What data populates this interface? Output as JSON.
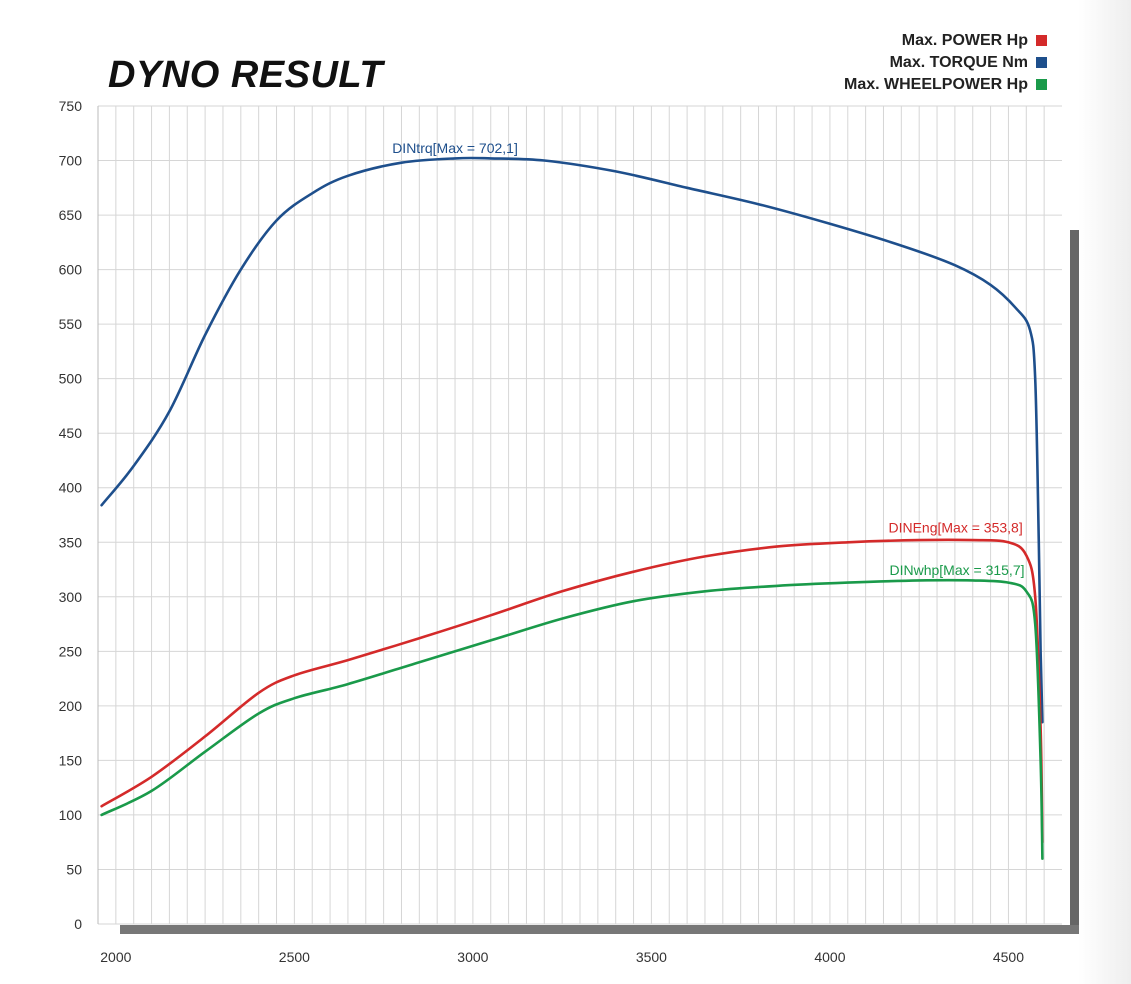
{
  "chart_data": {
    "type": "line",
    "title": "DYNO RESULT",
    "xlabel": "",
    "ylabel": "",
    "xlim": [
      1950,
      4650
    ],
    "ylim": [
      0,
      750
    ],
    "x_ticks": [
      2000,
      2500,
      3000,
      3500,
      4000,
      4500
    ],
    "y_ticks": [
      0,
      50,
      100,
      150,
      200,
      250,
      300,
      350,
      400,
      450,
      500,
      550,
      600,
      650,
      700,
      750
    ],
    "grid": true,
    "legend_position": "top-right",
    "legend": [
      {
        "label": "Max. POWER Hp",
        "color": "#d42a2a"
      },
      {
        "label": "Max. TORQUE Nm",
        "color": "#1e4f8c"
      },
      {
        "label": "Max. WHEELPOWER Hp",
        "color": "#1a9a4a"
      }
    ],
    "series": [
      {
        "key": "torque",
        "color": "#1e4f8c",
        "annotation": "DINtrq[Max = 702,1]",
        "x": [
          1960,
          2050,
          2150,
          2250,
          2350,
          2450,
          2550,
          2650,
          2800,
          2950,
          3050,
          3200,
          3400,
          3600,
          3800,
          4000,
          4200,
          4350,
          4450,
          4520,
          4560,
          4575,
          4585,
          4590,
          4595
        ],
        "y": [
          384,
          420,
          470,
          540,
          600,
          645,
          670,
          686,
          698,
          702,
          702,
          700,
          690,
          675,
          660,
          642,
          622,
          604,
          586,
          565,
          545,
          500,
          350,
          250,
          185
        ]
      },
      {
        "key": "power",
        "color": "#d42a2a",
        "annotation": "DINEng[Max = 353,8]",
        "x": [
          1960,
          2100,
          2250,
          2400,
          2500,
          2650,
          2850,
          3050,
          3250,
          3450,
          3650,
          3850,
          4050,
          4250,
          4400,
          4500,
          4550,
          4575,
          4590,
          4595
        ],
        "y": [
          108,
          135,
          172,
          212,
          228,
          242,
          262,
          283,
          305,
          323,
          337,
          346,
          350,
          352,
          352,
          350,
          338,
          300,
          180,
          75
        ]
      },
      {
        "key": "wheelpower",
        "color": "#1a9a4a",
        "annotation": "DINwhp[Max = 315,7]",
        "x": [
          1960,
          2100,
          2250,
          2400,
          2500,
          2650,
          2850,
          3050,
          3250,
          3450,
          3650,
          3850,
          4050,
          4250,
          4400,
          4500,
          4550,
          4575,
          4590,
          4595
        ],
        "y": [
          100,
          122,
          158,
          193,
          207,
          220,
          240,
          260,
          280,
          296,
          305,
          310,
          313,
          315,
          315,
          313,
          305,
          275,
          150,
          60
        ]
      }
    ]
  }
}
